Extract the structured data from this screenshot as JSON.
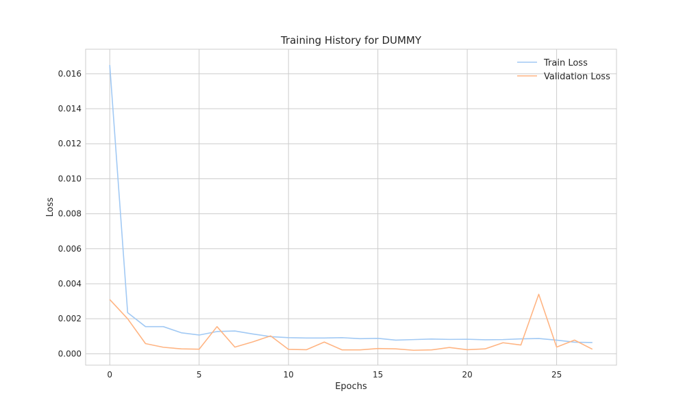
{
  "chart_data": {
    "type": "line",
    "title": "Training History for DUMMY",
    "xlabel": "Epochs",
    "ylabel": "Loss",
    "xlim": [
      -1.35,
      28.35
    ],
    "ylim": [
      -0.00065,
      0.0174
    ],
    "xticks": [
      0,
      5,
      10,
      15,
      20,
      25
    ],
    "xtick_labels": [
      "0",
      "5",
      "10",
      "15",
      "20",
      "25"
    ],
    "yticks": [
      0,
      0.002,
      0.004,
      0.006,
      0.008,
      0.01,
      0.012,
      0.014,
      0.016
    ],
    "ytick_labels": [
      "0.000",
      "0.002",
      "0.004",
      "0.006",
      "0.008",
      "0.010",
      "0.012",
      "0.014",
      "0.016"
    ],
    "grid": true,
    "legend_position": "top-right",
    "x": [
      0,
      1,
      2,
      3,
      4,
      5,
      6,
      7,
      8,
      9,
      10,
      11,
      12,
      13,
      14,
      15,
      16,
      17,
      18,
      19,
      20,
      21,
      22,
      23,
      24,
      25,
      26,
      27
    ],
    "series": [
      {
        "name": "Train Loss",
        "color": "#a1c9f4",
        "values": [
          0.0165,
          0.00235,
          0.00155,
          0.00155,
          0.0012,
          0.00107,
          0.00127,
          0.0013,
          0.00113,
          0.00098,
          0.00092,
          0.0009,
          0.0009,
          0.00092,
          0.00086,
          0.00088,
          0.00078,
          0.00081,
          0.00084,
          0.00082,
          0.00083,
          0.0008,
          0.00081,
          0.00085,
          0.00087,
          0.00078,
          0.00066,
          0.00064
        ]
      },
      {
        "name": "Validation Loss",
        "color": "#ffb482",
        "values": [
          0.0031,
          0.002,
          0.00058,
          0.00037,
          0.00028,
          0.00026,
          0.00155,
          0.00038,
          0.00068,
          0.00102,
          0.00025,
          0.00023,
          0.00067,
          0.00022,
          0.00022,
          0.0003,
          0.00028,
          0.0002,
          0.00022,
          0.00036,
          0.00023,
          0.00028,
          0.00063,
          0.0005,
          0.0034,
          0.00038,
          0.00078,
          0.00026
        ]
      }
    ]
  }
}
